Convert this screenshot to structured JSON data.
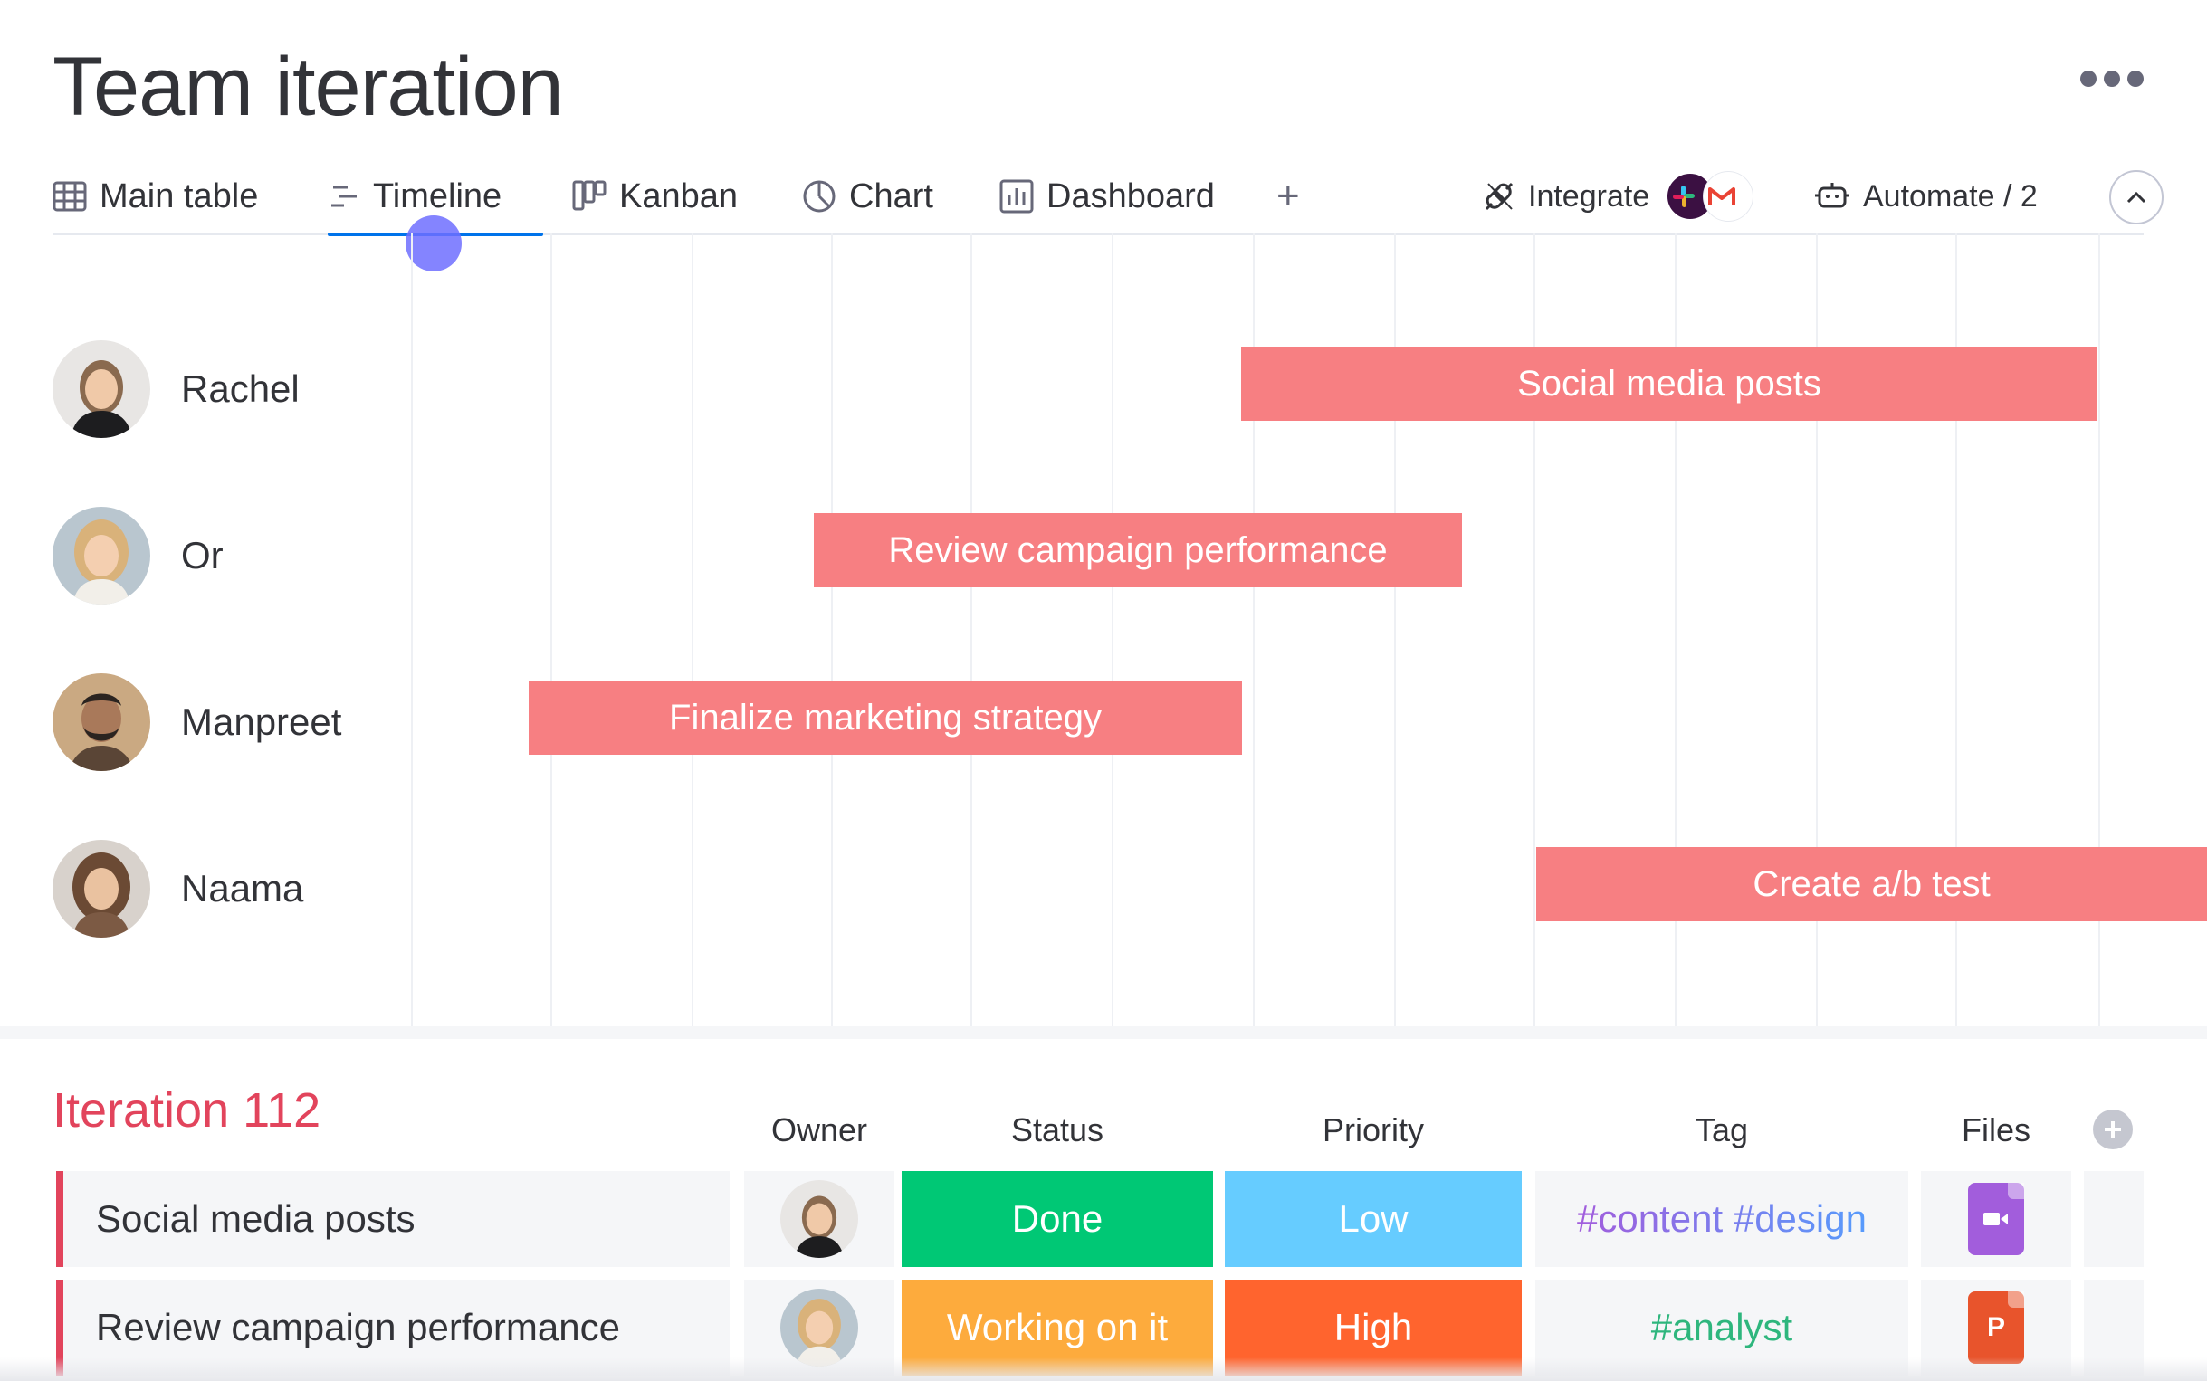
{
  "board": {
    "title": "Team iteration"
  },
  "tabs": [
    {
      "label": "Main table",
      "icon": "table-icon"
    },
    {
      "label": "Timeline",
      "icon": "timeline-icon",
      "active": true
    },
    {
      "label": "Kanban",
      "icon": "kanban-icon"
    },
    {
      "label": "Chart",
      "icon": "chart-icon"
    },
    {
      "label": "Dashboard",
      "icon": "dashboard-icon"
    }
  ],
  "add_view_label": "+",
  "integrate": {
    "label": "Integrate",
    "logos": [
      "slack-logo",
      "gmail-logo"
    ]
  },
  "automate": {
    "label": "Automate / 2"
  },
  "timeline": {
    "people": [
      {
        "name": "Rachel",
        "task": "Social media posts"
      },
      {
        "name": "Or",
        "task": "Review campaign performance"
      },
      {
        "name": "Manpreet",
        "task": "Finalize marketing strategy"
      },
      {
        "name": "Naama",
        "task": "Create a/b test"
      }
    ],
    "bar_color": "#f77f82"
  },
  "group": {
    "title": "Iteration 112",
    "color": "#e2445c",
    "columns": [
      "Owner",
      "Status",
      "Priority",
      "Tag",
      "Files"
    ],
    "rows": [
      {
        "name": "Social media posts",
        "status": "Done",
        "status_color": "#00c875",
        "priority": "Low",
        "priority_color": "#66ccff",
        "tag": "#content #design",
        "file": "video-file-icon",
        "file_color": "#a25ddc"
      },
      {
        "name": "Review campaign performance",
        "status": "Working on it",
        "status_color": "#fdab3d",
        "priority": "High",
        "priority_color": "#ff642e",
        "tag": "#analyst",
        "file": "powerpoint-file-icon",
        "file_color": "#e8542c",
        "file_letter": "P"
      }
    ]
  }
}
